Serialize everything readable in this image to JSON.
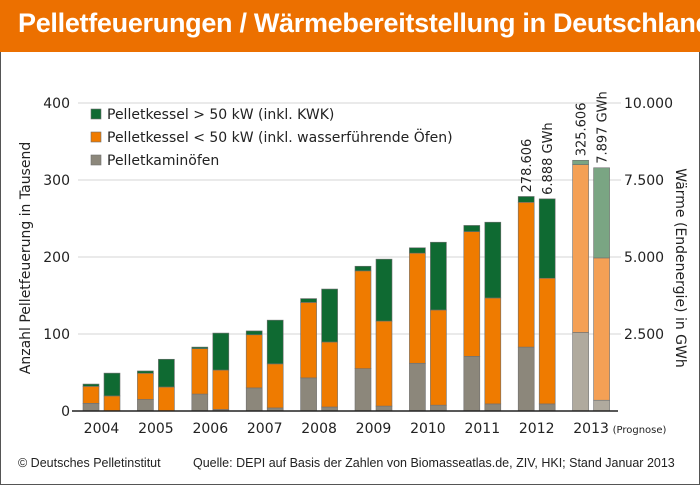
{
  "header": {
    "title": "Pelletfeuerungen / Wärmebereitstellung in Deutschland"
  },
  "footer": {
    "copyright": "© Deutsches Pelletinstitut",
    "source": "Quelle: DEPI auf Basis der Zahlen von Biomasseatlas.de, ZIV, HKI; Stand Januar 2013"
  },
  "colors": {
    "title_bg": "#ec7000",
    "green": "#0f6a32",
    "orange": "#ef7b00",
    "gray": "#8c877b",
    "green_forecast": "#7aa583",
    "orange_forecast": "#f4a055",
    "gray_forecast": "#b0aa9e"
  },
  "chart_data": {
    "type": "bar",
    "subtype": "stacked, paired (count vs. heat)",
    "title": "Pelletfeuerungen / Wärmebereitstellung in Deutschland",
    "categories": [
      "2004",
      "2005",
      "2006",
      "2007",
      "2008",
      "2009",
      "2010",
      "2011",
      "2012",
      "2013"
    ],
    "category_note": {
      "2013": "(Prognose)"
    },
    "ylabel_left": "Anzahl Pelletfeuerung in Tausend",
    "ylabel_right": "Wärme (Endenergie) in GWh",
    "ylim_left": [
      0,
      400
    ],
    "ylim_right": [
      0,
      10000
    ],
    "yticks_left": [
      "0",
      "100",
      "200",
      "300",
      "400"
    ],
    "yticks_right": [
      "2.500",
      "5.000",
      "7.500",
      "10.000"
    ],
    "yticks_right_values": [
      2500,
      5000,
      7500,
      10000
    ],
    "grid": true,
    "legend_position": "top-left",
    "legend": [
      {
        "key": "green",
        "label": "Pelletkessel > 50 kW (inkl. KWK)"
      },
      {
        "key": "orange",
        "label": "Pelletkessel < 50 kW (inkl. wasserführende Öfen)"
      },
      {
        "key": "gray",
        "label": "Pelletkaminöfen"
      }
    ],
    "count_series_thousands": [
      {
        "name": "Pelletkaminöfen",
        "key": "gray",
        "values": [
          10,
          15,
          22,
          30,
          43,
          55,
          62,
          71,
          83,
          102
        ]
      },
      {
        "name": "Pelletkessel < 50 kW (inkl. wasserführende Öfen)",
        "key": "orange",
        "values": [
          22,
          34,
          59,
          69,
          98,
          127,
          143,
          162,
          188,
          218
        ]
      },
      {
        "name": "Pelletkessel > 50 kW (inkl. KWK)",
        "key": "green",
        "values": [
          3,
          3,
          2,
          5,
          5,
          6,
          7,
          8,
          7.6,
          5.6
        ]
      }
    ],
    "heat_series_gwh": [
      {
        "name": "Pelletkaminöfen",
        "key": "gray",
        "values": [
          0,
          0,
          50,
          100,
          130,
          160,
          190,
          230,
          230,
          350
        ]
      },
      {
        "name": "Pelletkessel < 50 kW (inkl. wasserführende Öfen)",
        "key": "orange",
        "values": [
          490,
          780,
          1280,
          1430,
          2110,
          2760,
          3090,
          3440,
          4080,
          4620
        ]
      },
      {
        "name": "Pelletkessel > 50 kW (inkl. KWK)",
        "key": "green",
        "values": [
          740,
          900,
          1200,
          1420,
          1720,
          2010,
          2200,
          2460,
          2578,
          2927
        ]
      }
    ],
    "annotations": [
      {
        "category": "2012",
        "bar": "count",
        "text": "278.606"
      },
      {
        "category": "2012",
        "bar": "heat",
        "text": "6.888 GWh"
      },
      {
        "category": "2013",
        "bar": "count",
        "text": "325.606"
      },
      {
        "category": "2013",
        "bar": "heat",
        "text": "7.897 GWh"
      }
    ],
    "forecast_category": "2013"
  }
}
